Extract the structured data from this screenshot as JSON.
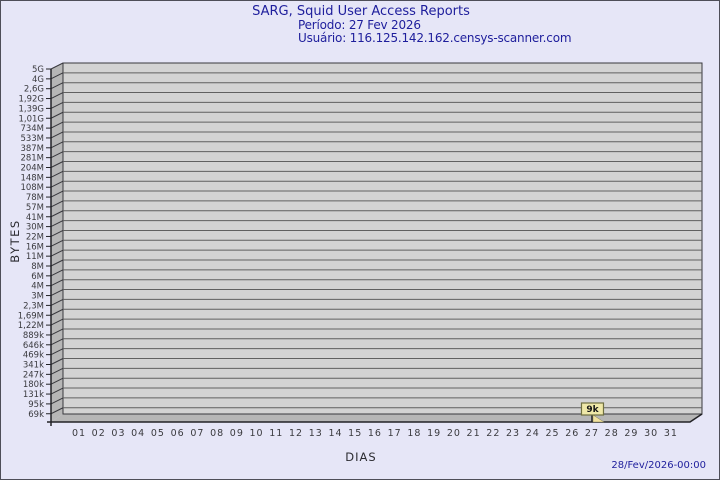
{
  "page": {
    "footer_timestamp": "28/Fev/2026-00:00"
  },
  "chart_data": {
    "type": "bar",
    "title": "SARG, Squid User Access Reports",
    "subtitle": [
      "Período: 27 Fev 2026",
      "Usuário: 116.125.142.162.censys-scanner.com"
    ],
    "xlabel": "DIAS",
    "ylabel": "BYTES",
    "y_scale": "log",
    "ylim": [
      "69k",
      "5G"
    ],
    "grid": true,
    "legend_position": "none",
    "y_tick_labels": [
      "5G",
      "4G",
      "2,6G",
      "1,92G",
      "1,39G",
      "1,01G",
      "734M",
      "533M",
      "387M",
      "281M",
      "204M",
      "148M",
      "108M",
      "78M",
      "57M",
      "41M",
      "30M",
      "22M",
      "16M",
      "11M",
      "8M",
      "6M",
      "4M",
      "3M",
      "2,3M",
      "1,69M",
      "1,22M",
      "889k",
      "646k",
      "469k",
      "341k",
      "247k",
      "180k",
      "131k",
      "95k",
      "69k"
    ],
    "x_tick_labels": [
      "01",
      "02",
      "03",
      "04",
      "05",
      "06",
      "07",
      "08",
      "09",
      "10",
      "11",
      "12",
      "13",
      "14",
      "15",
      "16",
      "17",
      "18",
      "19",
      "20",
      "21",
      "22",
      "23",
      "24",
      "25",
      "26",
      "27",
      "28",
      "29",
      "30",
      "31"
    ],
    "points": [
      {
        "day": "27",
        "bytes_label": "9k",
        "bytes": 9000
      }
    ],
    "colors": {
      "background": "#e6e6f7",
      "plot_face": "#d3d3d3",
      "wall": "#b6b6b6",
      "grid_line": "#606060",
      "edge_line": "#38383d",
      "axis_line": "#222226",
      "tick_text": "#3a3a3e",
      "title_text": "#1e1e9c",
      "flag_fill": "#efe8a8",
      "flag_border": "#6f6f40",
      "pennant_fill": "#f2e2a0"
    }
  }
}
